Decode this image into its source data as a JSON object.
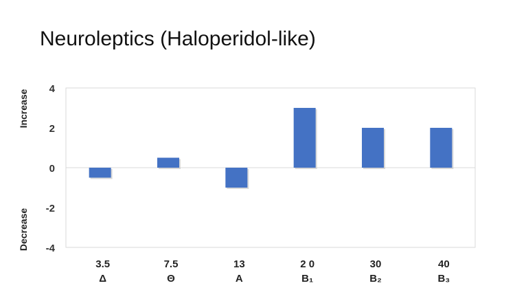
{
  "title": "Neuroleptics (Haloperidol-like)",
  "y_labels": {
    "increase": "Increase",
    "decrease": "Decrease"
  },
  "chart_data": {
    "type": "bar",
    "title": "Neuroleptics (Haloperidol-like)",
    "categories": [
      "3.5 Δ",
      "7.5 Θ",
      "13 A",
      "2 0 B₁",
      "30 B₂",
      "40 B₃"
    ],
    "category_numbers": [
      "3.5",
      "7.5",
      "13",
      "2 0",
      "30",
      "40"
    ],
    "category_bands": [
      "Δ",
      "Θ",
      "A",
      "B₁",
      "B₂",
      "B₃"
    ],
    "values": [
      -0.5,
      0.5,
      -1,
      3,
      2,
      2
    ],
    "ylim": [
      -4,
      4
    ],
    "yticks": [
      4,
      2,
      0,
      -2,
      -4
    ],
    "ylabel_top": "Increase",
    "ylabel_bottom": "Decrease",
    "xlabel": "",
    "grid": false,
    "bar_color": "#4472c4"
  }
}
